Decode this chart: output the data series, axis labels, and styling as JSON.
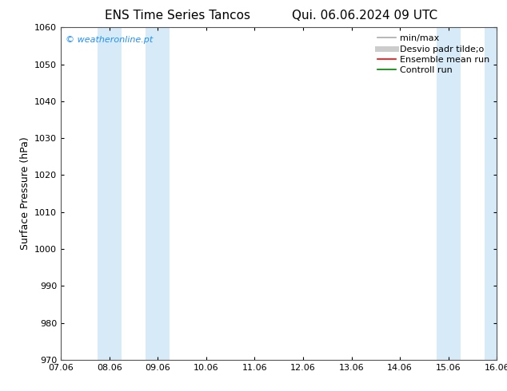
{
  "title_left": "ENS Time Series Tancos",
  "title_right": "Qui. 06.06.2024 09 UTC",
  "ylabel": "Surface Pressure (hPa)",
  "ylim": [
    970,
    1060
  ],
  "yticks": [
    970,
    980,
    990,
    1000,
    1010,
    1020,
    1030,
    1040,
    1050,
    1060
  ],
  "xtick_labels": [
    "07.06",
    "08.06",
    "09.06",
    "10.06",
    "11.06",
    "12.06",
    "13.06",
    "14.06",
    "15.06",
    "16.06"
  ],
  "xtick_positions": [
    0,
    1,
    2,
    3,
    4,
    5,
    6,
    7,
    8,
    9
  ],
  "shaded_regions": [
    {
      "xmin": 0.75,
      "xmax": 1.25,
      "color": "#d6eaf8"
    },
    {
      "xmin": 1.75,
      "xmax": 2.25,
      "color": "#d6eaf8"
    },
    {
      "xmin": 7.75,
      "xmax": 8.25,
      "color": "#d6eaf8"
    },
    {
      "xmin": 8.75,
      "xmax": 9.25,
      "color": "#d6eaf8"
    }
  ],
  "watermark_text": "© weatheronline.pt",
  "watermark_color": "#1e90ff",
  "background_color": "#ffffff",
  "legend_entries": [
    {
      "label": "min/max",
      "color": "#aaaaaa",
      "lw": 1.2
    },
    {
      "label": "Desvio padr tilde;o",
      "color": "#cccccc",
      "lw": 5
    },
    {
      "label": "Ensemble mean run",
      "color": "#ff0000",
      "lw": 1.2
    },
    {
      "label": "Controll run",
      "color": "#008000",
      "lw": 1.2
    }
  ],
  "border_color": "#555555",
  "font_size_title": 11,
  "font_size_axis": 9,
  "font_size_legend": 8,
  "font_size_ticks": 8,
  "font_size_watermark": 8
}
